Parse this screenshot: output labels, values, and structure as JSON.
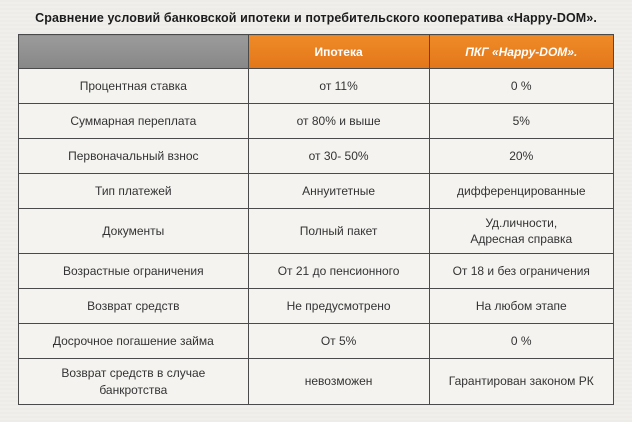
{
  "page_title": "Сравнение условий банковской ипотеки и потребительского кооператива «Happy-DOM».",
  "colors": {
    "header_orange": "#e87e1c",
    "header_gray": "#8e8e8e",
    "border": "#4a4a4a",
    "cell_background": "#f4f3f0",
    "page_background": "#f0efec",
    "header_text": "#ffffff",
    "cell_text": "#333333"
  },
  "chart_data": {
    "type": "table",
    "title": "Сравнение условий банковской ипотеки и потребительского кооператива «Happy-DOM».",
    "columns": [
      "",
      "Ипотека",
      "ПКГ «Happy-DOM»."
    ],
    "rows": [
      {
        "label": "Процентная ставка",
        "ipoteka": "от  11%",
        "pkg": "0 %"
      },
      {
        "label": "Суммарная переплата",
        "ipoteka": "от 80% и выше",
        "pkg": "5%"
      },
      {
        "label": "Первоначальный взнос",
        "ipoteka": "от 30- 50%",
        "pkg": "20%"
      },
      {
        "label": "Тип платежей",
        "ipoteka": "Аннуитетные",
        "pkg": "дифференцированные"
      },
      {
        "label": "Документы",
        "ipoteka": "Полный пакет",
        "pkg": "Уд.личности,\nАдресная справка"
      },
      {
        "label": "Возрастные ограничения",
        "ipoteka": "От 21 до пенсионного",
        "pkg": "От 18 и без ограничения"
      },
      {
        "label": "Возврат средств",
        "ipoteka": "Не предусмотрено",
        "pkg": "На любом этапе"
      },
      {
        "label": "Досрочное погашение займа",
        "ipoteka": "От 5%",
        "pkg": "0 %"
      },
      {
        "label": "Возврат средств в случае банкротства",
        "ipoteka": "невозможен",
        "pkg": "Гарантирован законом РК"
      }
    ]
  }
}
